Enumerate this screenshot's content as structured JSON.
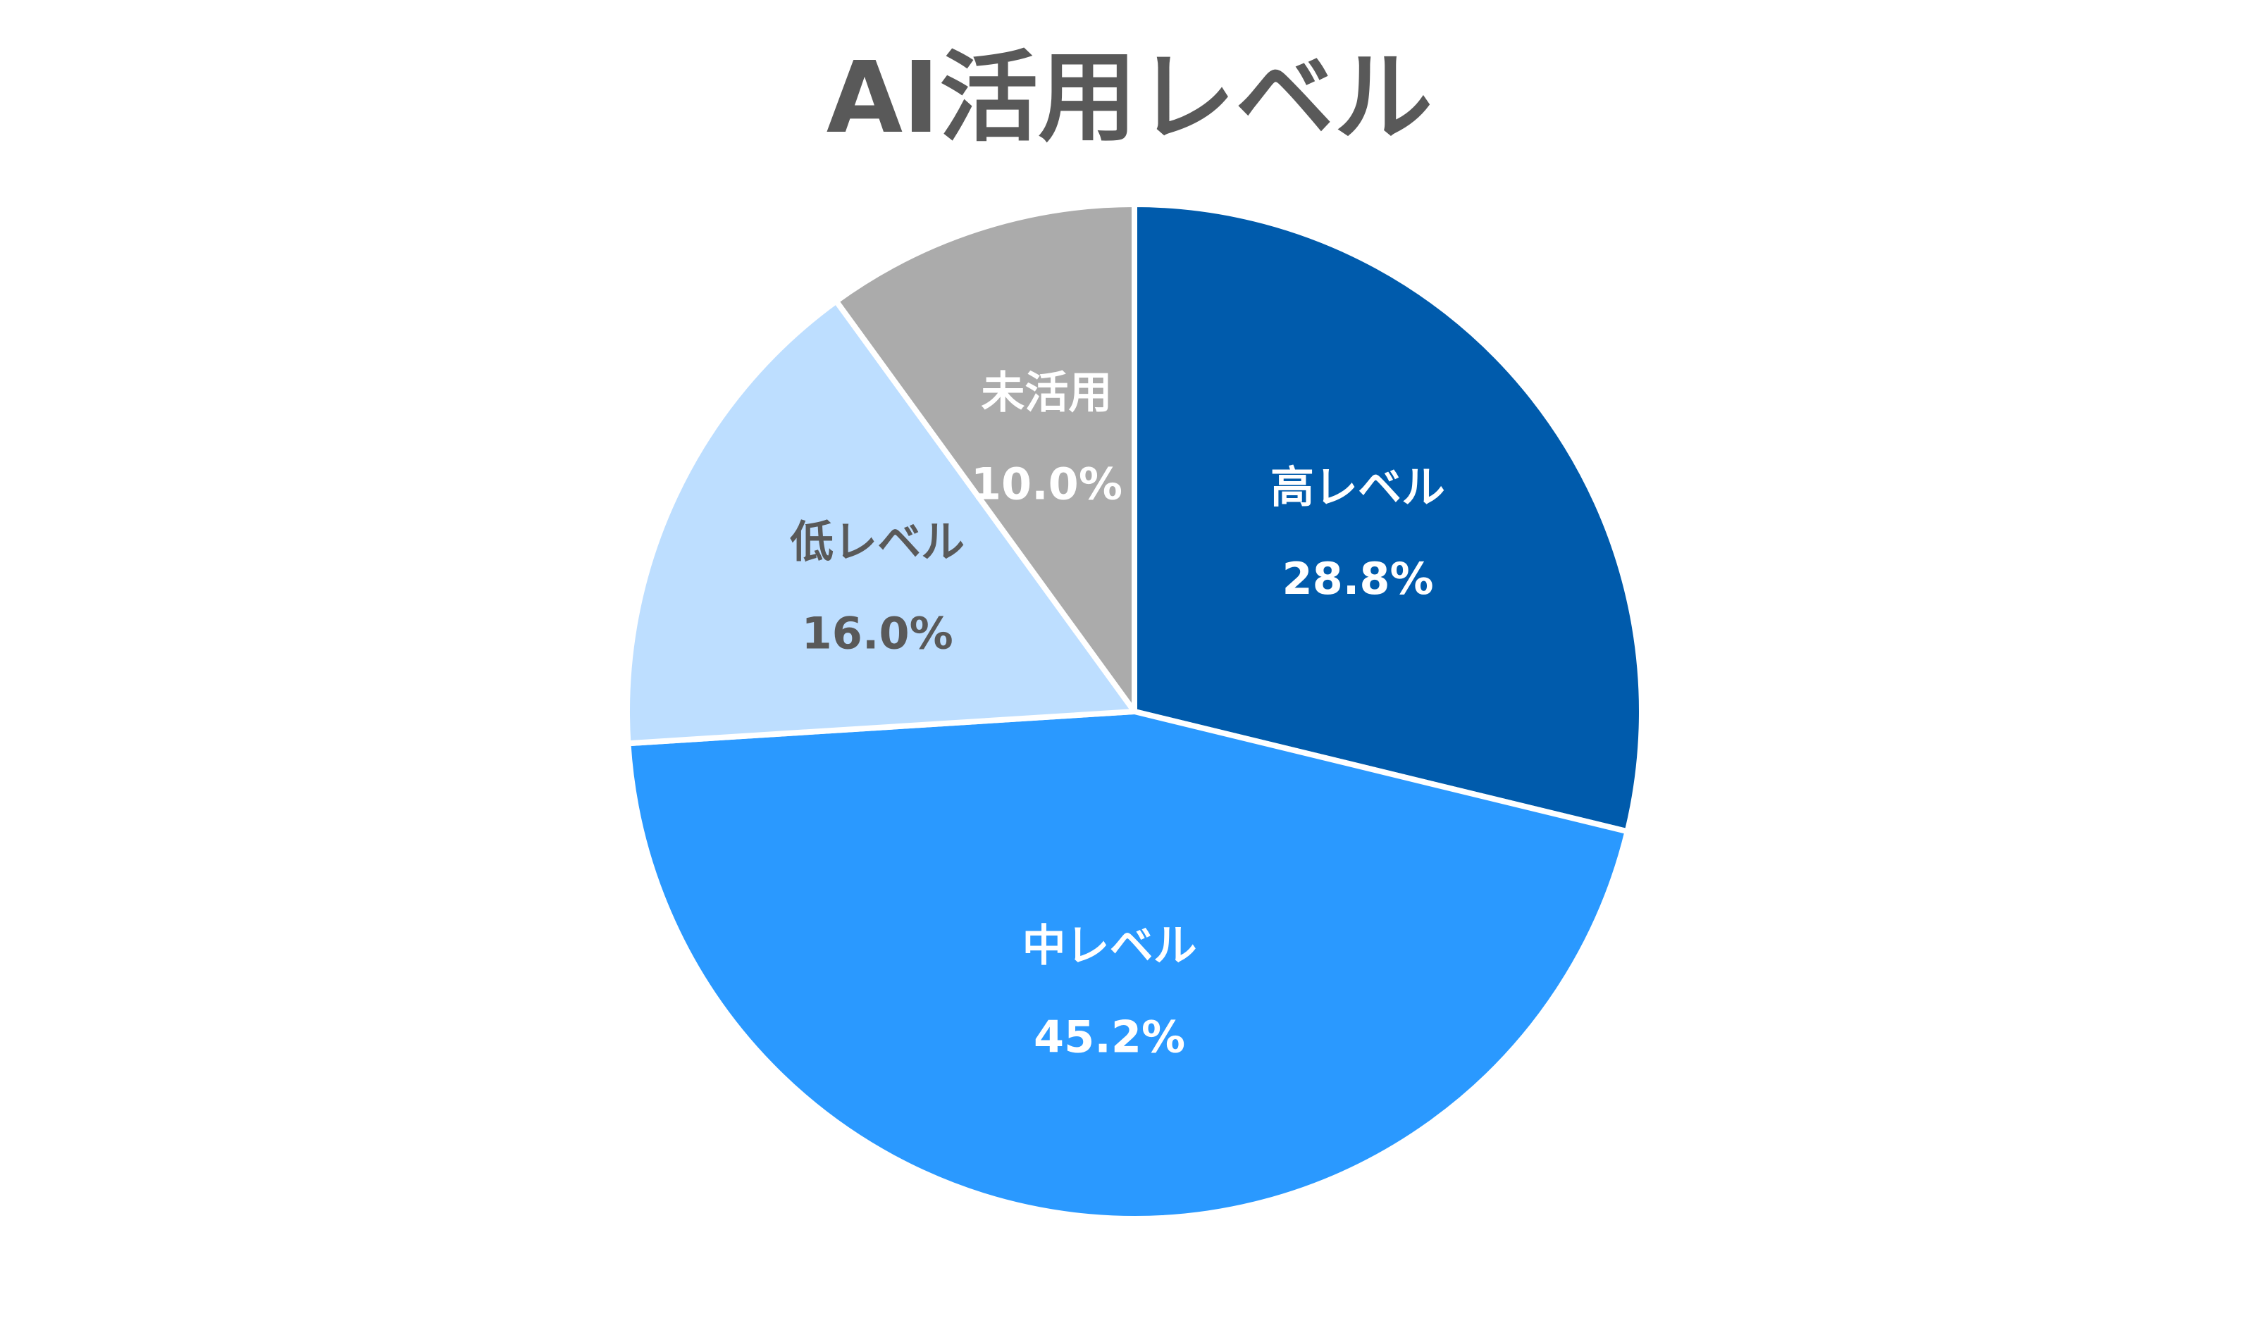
{
  "chart_data": {
    "type": "pie",
    "title": "AI活用レベル",
    "categories": [
      "高レベル",
      "中レベル",
      "低レベル",
      "未活用"
    ],
    "values": [
      28.8,
      45.2,
      16.0,
      10.0
    ],
    "value_labels": [
      "28.8%",
      "45.2%",
      "16.0%",
      "10.0%"
    ],
    "colors": [
      "#005BAC",
      "#2A99FF",
      "#BDDEFF",
      "#ABABAB"
    ],
    "label_colors": [
      "#FFFFFF",
      "#FFFFFF",
      "#595959",
      "#FFFFFF"
    ],
    "start_angle": "12 o'clock",
    "direction": "clockwise",
    "legend": "none"
  }
}
